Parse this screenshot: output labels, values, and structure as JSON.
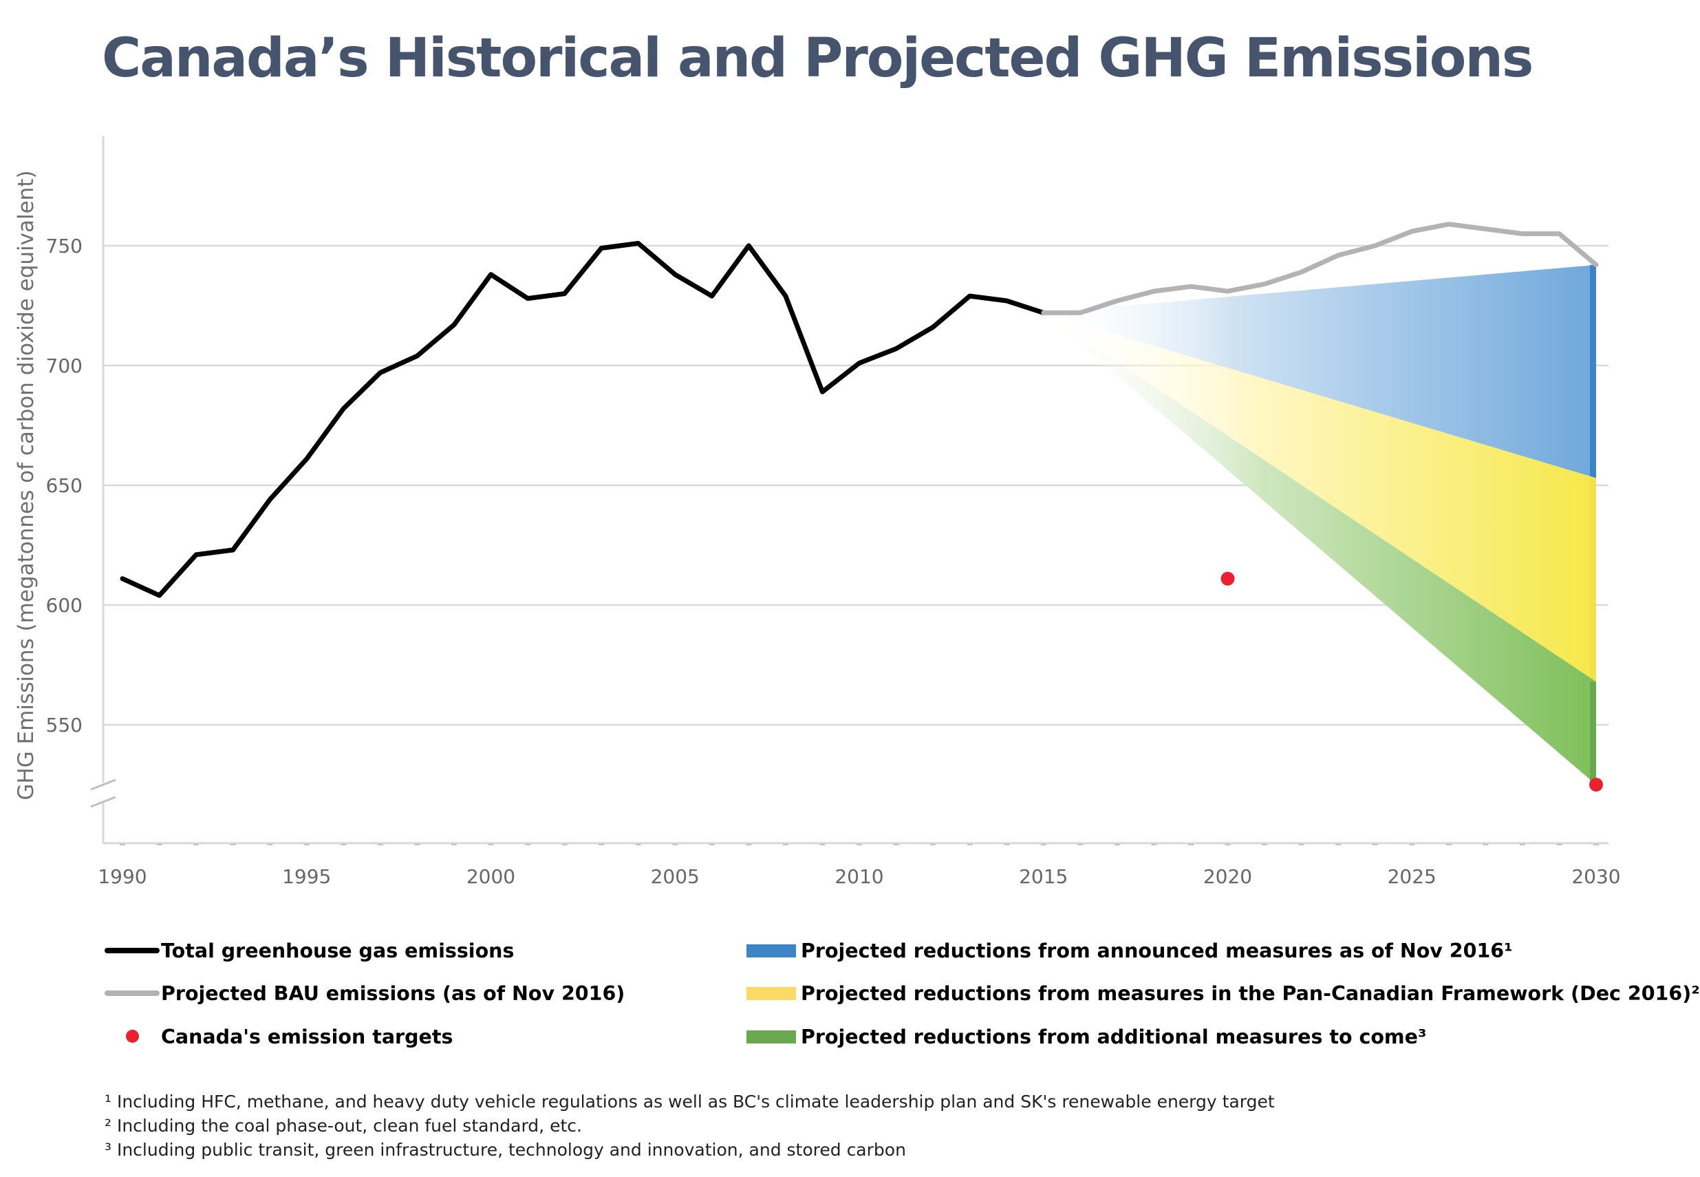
{
  "title": "Canada’s Historical and Projected GHG Emissions",
  "colors": {
    "title": "#46546e",
    "historical": "#000000",
    "bau": "#b3b3b3",
    "announced": "#3d85c6",
    "pan_canadian": "#ffd966",
    "additional": "#6aa84f",
    "target": "#e8222e"
  },
  "legend": [
    {
      "label": "Total greenhouse gas emissions",
      "swatch": "line",
      "color": "#000000"
    },
    {
      "label": "Projected BAU emissions (as of Nov 2016)",
      "swatch": "line",
      "color": "#b3b3b3"
    },
    {
      "label": "Canada's emission targets",
      "swatch": "dot",
      "color": "#e8222e"
    },
    {
      "label": "Projected reductions from announced measures as of Nov 2016¹",
      "swatch": "box",
      "color": "#3d85c6"
    },
    {
      "label": "Projected reductions from measures in the Pan-Canadian Framework (Dec 2016)²",
      "swatch": "box",
      "color": "#ffd966"
    },
    {
      "label": "Projected reductions from additional measures to come³",
      "swatch": "box",
      "color": "#6aa84f"
    }
  ],
  "footnotes": [
    "¹ Including HFC, methane, and heavy duty vehicle regulations as well as BC's climate leadership plan and SK's renewable energy target",
    "² Including the coal phase-out, clean fuel standard, etc.",
    "³ Including public transit, green infrastructure, technology and innovation, and stored carbon"
  ],
  "chart_data": {
    "type": "line",
    "title": "Canada’s Historical and Projected GHG Emissions",
    "ylabel": "GHG Emissions (megatonnes of carbon dioxide equivalent)",
    "xlabel": "",
    "xlim": [
      1990,
      2030
    ],
    "ylim": [
      525,
      795
    ],
    "y_axis_break": true,
    "xticks": [
      1990,
      1995,
      2000,
      2005,
      2010,
      2015,
      2020,
      2025,
      2030
    ],
    "yticks": [
      550,
      600,
      650,
      700,
      750
    ],
    "grid": "horizontal",
    "legend_position": "bottom",
    "series": [
      {
        "name": "Total greenhouse gas emissions",
        "color": "#000000",
        "x": [
          1990,
          1991,
          1992,
          1993,
          1994,
          1995,
          1996,
          1997,
          1998,
          1999,
          2000,
          2001,
          2002,
          2003,
          2004,
          2005,
          2006,
          2007,
          2008,
          2009,
          2010,
          2011,
          2012,
          2013,
          2014,
          2015
        ],
        "y": [
          611,
          604,
          621,
          623,
          644,
          661,
          682,
          697,
          704,
          717,
          738,
          728,
          730,
          749,
          751,
          738,
          729,
          750,
          729,
          689,
          701,
          707,
          716,
          729,
          727,
          722
        ]
      },
      {
        "name": "Projected BAU emissions (as of Nov 2016)",
        "color": "#b3b3b3",
        "x": [
          2015,
          2016,
          2017,
          2018,
          2019,
          2020,
          2021,
          2022,
          2023,
          2024,
          2025,
          2026,
          2027,
          2028,
          2029,
          2030
        ],
        "y": [
          722,
          722,
          727,
          731,
          733,
          731,
          734,
          739,
          746,
          750,
          756,
          759,
          757,
          755,
          755,
          742
        ]
      }
    ],
    "bands": [
      {
        "name": "Projected reductions from announced measures as of Nov 2016¹",
        "color": "#3d85c6",
        "x": [
          2015,
          2030
        ],
        "upper": [
          722,
          742
        ],
        "lower": [
          722,
          653
        ]
      },
      {
        "name": "Projected reductions from measures in the Pan-Canadian Framework (Dec 2016)²",
        "color": "#ffd966",
        "x": [
          2015,
          2030
        ],
        "upper": [
          722,
          653
        ],
        "lower": [
          722,
          568
        ]
      },
      {
        "name": "Projected reductions from additional measures to come³",
        "color": "#6aa84f",
        "x": [
          2015,
          2030
        ],
        "upper": [
          722,
          568
        ],
        "lower": [
          722,
          525
        ]
      }
    ],
    "targets": {
      "name": "Canada's emission targets",
      "color": "#e8222e",
      "points": [
        {
          "x": 2020,
          "y": 611
        },
        {
          "x": 2030,
          "y": 525
        }
      ]
    }
  }
}
